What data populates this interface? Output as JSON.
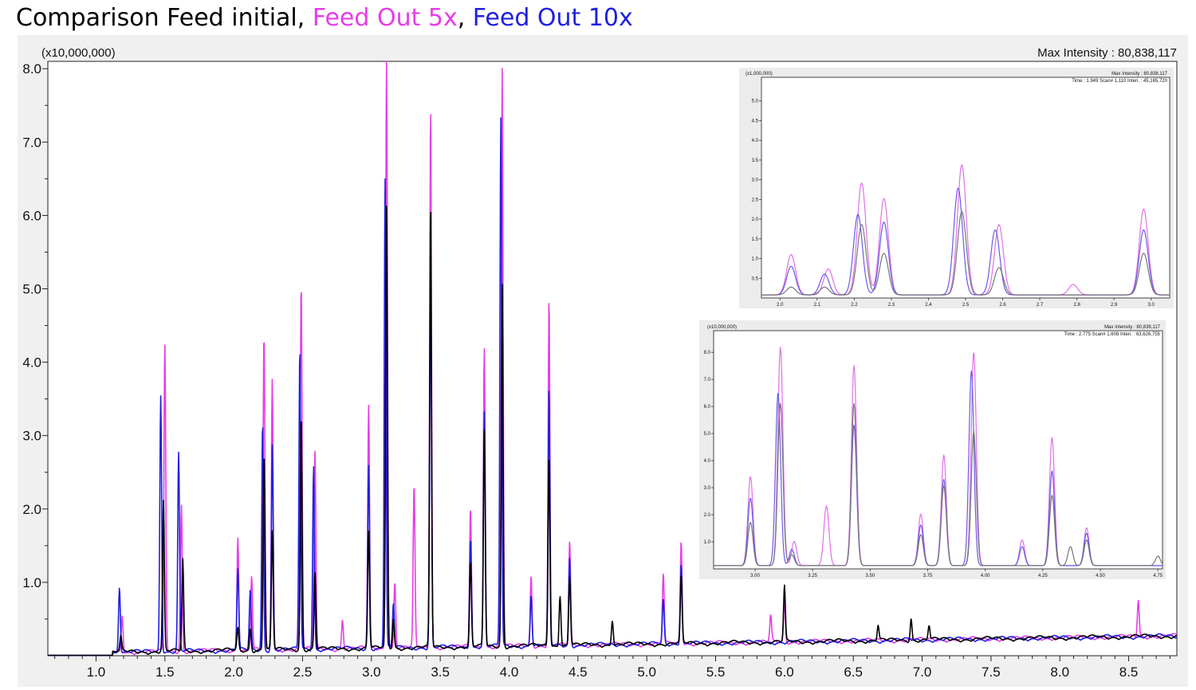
{
  "title": {
    "prefix": "Comparison Feed initial",
    "sep1": ", ",
    "series_pink": "Feed Out 5x",
    "sep2": ", ",
    "series_blue": "Feed Out 10x"
  },
  "colors": {
    "feed_initial": "#000000",
    "feed_out_5x": "#e63ee6",
    "feed_out_10x": "#2020e0"
  },
  "chart_data": {
    "type": "line",
    "title": "Comparison Feed initial, Feed Out 5x, Feed Out 10x",
    "ylabel_multiplier": "(x10,000,000)",
    "max_intensity_label": "Max Intensity : 80,838,117",
    "xlim": [
      0.65,
      8.85
    ],
    "ylim": [
      0,
      8.1
    ],
    "x_ticks": [
      "1.0",
      "1.5",
      "2.0",
      "2.5",
      "3.0",
      "3.5",
      "4.0",
      "4.5",
      "5.0",
      "5.5",
      "6.0",
      "6.5",
      "7.0",
      "7.5",
      "8.0",
      "8.5"
    ],
    "y_ticks": [
      "1.0",
      "2.0",
      "3.0",
      "4.0",
      "5.0",
      "6.0",
      "7.0",
      "8.0"
    ],
    "series": [
      {
        "name": "Feed initial",
        "peaks": [
          [
            1.18,
            0.2
          ],
          [
            1.49,
            2.05
          ],
          [
            1.63,
            1.25
          ],
          [
            2.03,
            0.3
          ],
          [
            2.12,
            0.3
          ],
          [
            2.22,
            2.7
          ],
          [
            2.28,
            1.6
          ],
          [
            2.49,
            3.2
          ],
          [
            2.59,
            1.05
          ],
          [
            2.98,
            1.6
          ],
          [
            3.11,
            6.0
          ],
          [
            3.16,
            0.4
          ],
          [
            3.43,
            6.0
          ],
          [
            3.72,
            1.15
          ],
          [
            3.82,
            2.95
          ],
          [
            3.95,
            4.95
          ],
          [
            4.29,
            2.6
          ],
          [
            4.37,
            0.7
          ],
          [
            4.44,
            0.95
          ],
          [
            4.75,
            0.35
          ],
          [
            5.25,
            0.9
          ],
          [
            6.0,
            0.75
          ],
          [
            6.68,
            0.2
          ],
          [
            6.92,
            0.3
          ],
          [
            7.05,
            0.2
          ]
        ]
      },
      {
        "name": "Feed Out 5x",
        "peaks": [
          [
            1.19,
            0.5
          ],
          [
            1.5,
            4.2
          ],
          [
            1.62,
            2.0
          ],
          [
            2.03,
            1.55
          ],
          [
            2.13,
            1.0
          ],
          [
            2.22,
            4.3
          ],
          [
            2.28,
            3.7
          ],
          [
            2.49,
            5.0
          ],
          [
            2.59,
            2.7
          ],
          [
            2.79,
            0.4
          ],
          [
            2.98,
            3.3
          ],
          [
            3.11,
            8.08
          ],
          [
            3.17,
            0.9
          ],
          [
            3.31,
            2.2
          ],
          [
            3.43,
            7.4
          ],
          [
            3.72,
            1.9
          ],
          [
            3.82,
            4.1
          ],
          [
            3.95,
            7.9
          ],
          [
            4.16,
            0.95
          ],
          [
            4.29,
            4.75
          ],
          [
            4.44,
            1.4
          ],
          [
            5.12,
            0.95
          ],
          [
            5.25,
            1.4
          ],
          [
            5.9,
            0.35
          ],
          [
            6.0,
            0.55
          ],
          [
            8.57,
            0.5
          ]
        ]
      },
      {
        "name": "Feed Out 10x",
        "peaks": [
          [
            1.17,
            0.9
          ],
          [
            1.47,
            3.5
          ],
          [
            1.6,
            2.7
          ],
          [
            2.03,
            1.1
          ],
          [
            2.12,
            0.8
          ],
          [
            2.21,
            3.1
          ],
          [
            2.28,
            2.8
          ],
          [
            2.48,
            4.1
          ],
          [
            2.58,
            2.5
          ],
          [
            2.98,
            2.5
          ],
          [
            3.1,
            6.4
          ],
          [
            3.16,
            0.6
          ],
          [
            3.43,
            5.2
          ],
          [
            3.72,
            1.5
          ],
          [
            3.82,
            3.2
          ],
          [
            3.94,
            7.2
          ],
          [
            4.16,
            0.7
          ],
          [
            4.29,
            3.5
          ],
          [
            4.44,
            1.2
          ],
          [
            5.12,
            0.6
          ],
          [
            5.25,
            1.1
          ]
        ]
      }
    ],
    "insets": [
      {
        "multiplier": "(x1,000,000)",
        "header": "Max Intensity : 80,838,117",
        "subheader": "Time : 1.949  Scan# 1,110  Inten. : 45,165,720",
        "y_ticks": [
          "0.5",
          "1.0",
          "1.5",
          "2.0",
          "2.5",
          "3.0",
          "3.5",
          "4.0",
          "4.5",
          "5.0"
        ],
        "x_ticks": [
          "2.0",
          "2.1",
          "2.2",
          "2.3",
          "2.4",
          "2.5",
          "2.6",
          "2.7",
          "2.8",
          "2.9",
          "3.0"
        ],
        "xlim": [
          1.95,
          3.05
        ],
        "ylim": [
          0,
          5.6
        ]
      },
      {
        "multiplier": "(x10,000,000)",
        "header": "Max Intensity : 80,838,117",
        "subheader": "Time : 2.775  Scan# 1,608  Inten. : 63,626,755",
        "y_ticks": [
          "1.0",
          "2.0",
          "3.0",
          "4.0",
          "5.0",
          "6.0",
          "7.0",
          "8.0"
        ],
        "x_ticks": [
          "3.00",
          "3.25",
          "3.50",
          "3.75",
          "4.00",
          "4.25",
          "4.50",
          "4.75"
        ],
        "xlim": [
          2.82,
          4.77
        ],
        "ylim": [
          0,
          8.8
        ]
      }
    ]
  }
}
